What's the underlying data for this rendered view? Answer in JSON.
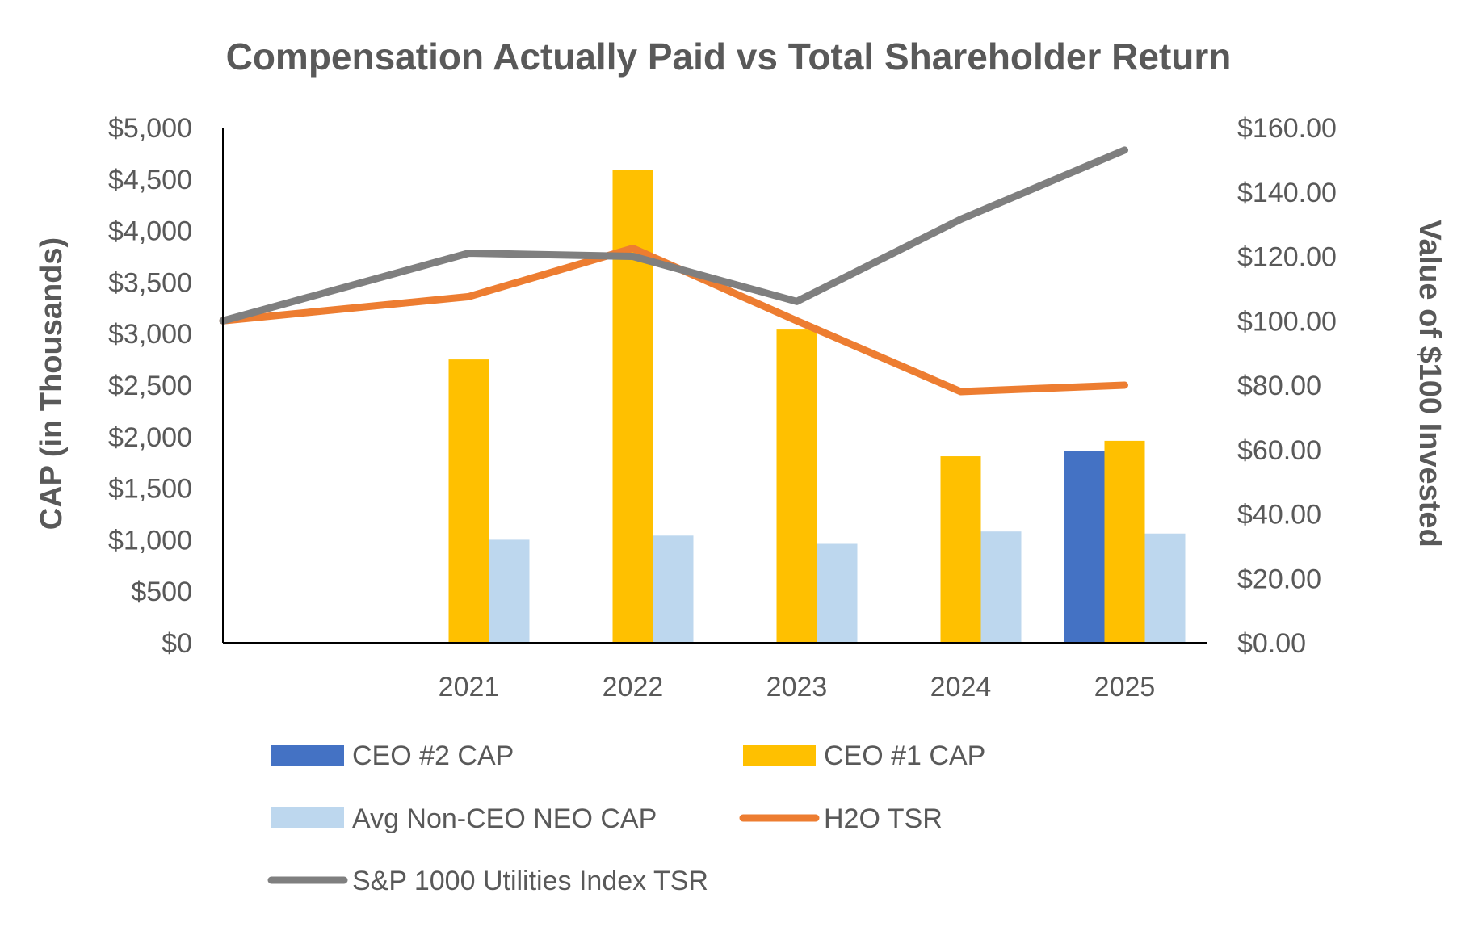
{
  "chart_data": {
    "type": "bar",
    "title": "Compensation Actually Paid vs Total Shareholder Return",
    "categories": [
      "2021",
      "2022",
      "2023",
      "2024",
      "2025"
    ],
    "y_left": {
      "label": "CAP (in Thousands)",
      "ylim": [
        0,
        5000
      ],
      "ticks": [
        "$0",
        "$500",
        "$1,000",
        "$1,500",
        "$2,000",
        "$2,500",
        "$3,000",
        "$3,500",
        "$4,000",
        "$4,500",
        "$5,000"
      ]
    },
    "y_right": {
      "label": "Value of $100 Invested",
      "ylim": [
        0,
        160
      ],
      "ticks": [
        "$0.00",
        "$20.00",
        "$40.00",
        "$60.00",
        "$80.00",
        "$100.00",
        "$120.00",
        "$140.00",
        "$160.00"
      ]
    },
    "bar_series": [
      {
        "name": "CEO #2 CAP",
        "color": "#4472C4",
        "values": [
          null,
          null,
          null,
          null,
          1860
        ]
      },
      {
        "name": "CEO #1 CAP",
        "color": "#FFC000",
        "values": [
          2750,
          4590,
          3040,
          1810,
          1960
        ]
      },
      {
        "name": "Avg Non-CEO NEO CAP",
        "color": "#BDD7EE",
        "values": [
          1000,
          1040,
          960,
          1080,
          1060
        ]
      }
    ],
    "line_series": [
      {
        "name": "H2O TSR",
        "color": "#ED7D31",
        "x": [
          "",
          "2021",
          "2022",
          "2023",
          "2024",
          "2025"
        ],
        "values": [
          100,
          107.5,
          122.5,
          100,
          78,
          80
        ]
      },
      {
        "name": "S&P 1000 Utilities Index TSR",
        "color": "#7F7F7F",
        "x": [
          "",
          "2021",
          "2022",
          "2023",
          "2024",
          "2025"
        ],
        "values": [
          100,
          121,
          120,
          106,
          131.5,
          153
        ]
      }
    ],
    "legend": [
      {
        "label": "CEO #2 CAP",
        "kind": "bar",
        "color": "#4472C4"
      },
      {
        "label": "CEO #1 CAP",
        "kind": "bar",
        "color": "#FFC000"
      },
      {
        "label": "Avg Non-CEO NEO CAP",
        "kind": "bar",
        "color": "#BDD7EE"
      },
      {
        "label": "H2O TSR",
        "kind": "line",
        "color": "#ED7D31"
      },
      {
        "label": "S&P 1000 Utilities Index TSR",
        "kind": "line",
        "color": "#7F7F7F"
      }
    ],
    "legend_position": "bottom",
    "grid": false
  }
}
